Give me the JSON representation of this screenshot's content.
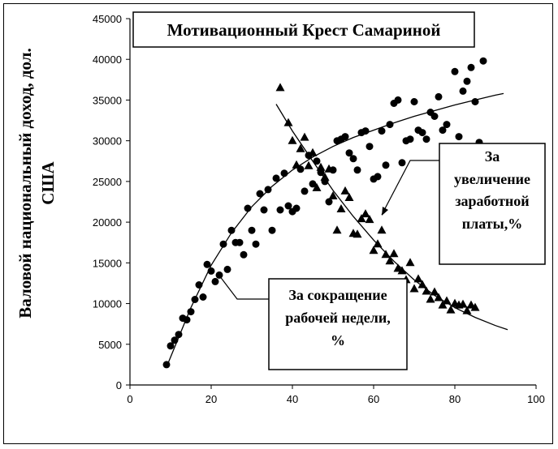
{
  "chart_data": {
    "type": "scatter",
    "title": "Мотивационный Крест Самариной",
    "xlabel": "",
    "ylabel_line1": "Валовой национальный доход, дол.",
    "ylabel_line2": "США",
    "xlim": [
      0,
      100
    ],
    "ylim": [
      0,
      45000
    ],
    "xticks": [
      "0",
      "20",
      "40",
      "60",
      "80",
      "100"
    ],
    "yticks": [
      "0",
      "5000",
      "10000",
      "15000",
      "20000",
      "25000",
      "30000",
      "35000",
      "40000",
      "45000"
    ],
    "grid": false,
    "series": [
      {
        "name": "За увеличение заработной платы,%",
        "marker": "circle",
        "points": [
          [
            9,
            2500
          ],
          [
            10,
            4800
          ],
          [
            11,
            5500
          ],
          [
            12,
            6200
          ],
          [
            13,
            8200
          ],
          [
            14,
            8000
          ],
          [
            15,
            9000
          ],
          [
            16,
            10500
          ],
          [
            17,
            12300
          ],
          [
            18,
            10800
          ],
          [
            19,
            14800
          ],
          [
            20,
            14000
          ],
          [
            21,
            12700
          ],
          [
            22,
            13500
          ],
          [
            23,
            17300
          ],
          [
            24,
            14200
          ],
          [
            25,
            19000
          ],
          [
            26,
            17500
          ],
          [
            27,
            17500
          ],
          [
            28,
            16000
          ],
          [
            29,
            21700
          ],
          [
            30,
            19000
          ],
          [
            31,
            17300
          ],
          [
            32,
            23500
          ],
          [
            33,
            21500
          ],
          [
            34,
            24000
          ],
          [
            35,
            19000
          ],
          [
            36,
            25400
          ],
          [
            37,
            21500
          ],
          [
            38,
            26000
          ],
          [
            39,
            22000
          ],
          [
            40,
            21300
          ],
          [
            41,
            21700
          ],
          [
            42,
            26500
          ],
          [
            43,
            23800
          ],
          [
            44,
            28200
          ],
          [
            45,
            24700
          ],
          [
            46,
            27500
          ],
          [
            47,
            26100
          ],
          [
            48,
            25000
          ],
          [
            49,
            22500
          ],
          [
            50,
            26400
          ],
          [
            51,
            30000
          ],
          [
            52,
            30200
          ],
          [
            53,
            30500
          ],
          [
            54,
            28500
          ],
          [
            55,
            27800
          ],
          [
            56,
            26400
          ],
          [
            57,
            31000
          ],
          [
            58,
            31200
          ],
          [
            59,
            29300
          ],
          [
            60,
            25300
          ],
          [
            61,
            25600
          ],
          [
            62,
            31200
          ],
          [
            63,
            27000
          ],
          [
            64,
            32000
          ],
          [
            65,
            34600
          ],
          [
            66,
            35000
          ],
          [
            67,
            27300
          ],
          [
            68,
            30000
          ],
          [
            69,
            30200
          ],
          [
            70,
            34800
          ],
          [
            71,
            31300
          ],
          [
            72,
            31000
          ],
          [
            73,
            30200
          ],
          [
            74,
            33500
          ],
          [
            75,
            33000
          ],
          [
            76,
            35400
          ],
          [
            77,
            31300
          ],
          [
            78,
            32000
          ],
          [
            80,
            38500
          ],
          [
            81,
            30500
          ],
          [
            82,
            36100
          ],
          [
            83,
            37300
          ],
          [
            84,
            39000
          ],
          [
            85,
            34800
          ],
          [
            86,
            29800
          ],
          [
            87,
            39800
          ]
        ]
      },
      {
        "name": "За сокращение рабочей недели, %",
        "marker": "triangle",
        "points": [
          [
            37,
            36500
          ],
          [
            39,
            32200
          ],
          [
            40,
            30000
          ],
          [
            41,
            27000
          ],
          [
            42,
            29000
          ],
          [
            43,
            30400
          ],
          [
            44,
            26900
          ],
          [
            45,
            28500
          ],
          [
            46,
            24200
          ],
          [
            47,
            26700
          ],
          [
            48,
            25500
          ],
          [
            49,
            26500
          ],
          [
            50,
            23200
          ],
          [
            51,
            19000
          ],
          [
            52,
            21600
          ],
          [
            53,
            23800
          ],
          [
            54,
            23000
          ],
          [
            55,
            18600
          ],
          [
            56,
            18500
          ],
          [
            57,
            20400
          ],
          [
            58,
            21000
          ],
          [
            59,
            20300
          ],
          [
            60,
            16500
          ],
          [
            61,
            17300
          ],
          [
            62,
            19000
          ],
          [
            63,
            16000
          ],
          [
            64,
            15200
          ],
          [
            65,
            16100
          ],
          [
            66,
            14300
          ],
          [
            67,
            14000
          ],
          [
            68,
            12900
          ],
          [
            69,
            15000
          ],
          [
            70,
            11800
          ],
          [
            71,
            13000
          ],
          [
            72,
            12300
          ],
          [
            73,
            11500
          ],
          [
            74,
            10500
          ],
          [
            75,
            11400
          ],
          [
            76,
            10700
          ],
          [
            77,
            9800
          ],
          [
            78,
            10300
          ],
          [
            79,
            9200
          ],
          [
            80,
            10000
          ],
          [
            81,
            9800
          ],
          [
            82,
            9900
          ],
          [
            83,
            9100
          ],
          [
            84,
            9800
          ],
          [
            85,
            9500
          ]
        ]
      }
    ],
    "trend_lines": [
      {
        "series": "За увеличение заработной платы,%",
        "points": [
          [
            9,
            2200
          ],
          [
            15,
            9500
          ],
          [
            20,
            14700
          ],
          [
            25,
            18700
          ],
          [
            30,
            21900
          ],
          [
            35,
            24400
          ],
          [
            40,
            26400
          ],
          [
            45,
            28000
          ],
          [
            50,
            29300
          ],
          [
            55,
            30400
          ],
          [
            60,
            31300
          ],
          [
            65,
            32200
          ],
          [
            70,
            33000
          ],
          [
            75,
            33700
          ],
          [
            80,
            34400
          ],
          [
            85,
            35000
          ],
          [
            90,
            35600
          ],
          [
            92,
            35800
          ]
        ]
      },
      {
        "series": "За сокращение рабочей недели, %",
        "points": [
          [
            36,
            34500
          ],
          [
            40,
            31200
          ],
          [
            45,
            27500
          ],
          [
            50,
            23900
          ],
          [
            55,
            20700
          ],
          [
            60,
            17800
          ],
          [
            65,
            15200
          ],
          [
            70,
            12900
          ],
          [
            75,
            11000
          ],
          [
            80,
            9500
          ],
          [
            85,
            8300
          ],
          [
            90,
            7300
          ],
          [
            93,
            6800
          ]
        ]
      }
    ],
    "labels": {
      "wage": [
        "За",
        "увеличение",
        "заработной",
        "платы,%"
      ],
      "week": [
        "За сокращение",
        "рабочей недели,",
        "%"
      ]
    }
  }
}
